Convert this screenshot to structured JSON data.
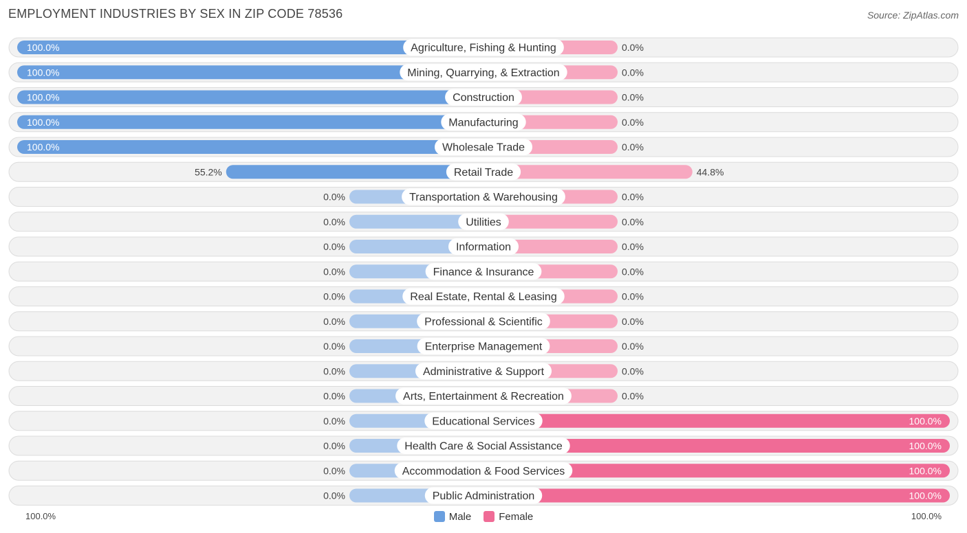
{
  "title": "EMPLOYMENT INDUSTRIES BY SEX IN ZIP CODE 78536",
  "source": "Source: ZipAtlas.com",
  "axis": {
    "left_label": "100.0%",
    "right_label": "100.0%"
  },
  "legend": {
    "male": "Male",
    "female": "Female"
  },
  "colors": {
    "male_strong": "#6a9fdf",
    "male_light": "#adc9ec",
    "female_strong": "#f06b96",
    "female_light": "#f7a8c0",
    "row_bg": "#f2f2f2",
    "row_border": "#dcdcdc"
  },
  "chart_data": {
    "type": "bar",
    "orientation": "horizontal-diverging",
    "xlim": [
      -100,
      100
    ],
    "categories": [
      "Agriculture, Fishing & Hunting",
      "Mining, Quarrying, & Extraction",
      "Construction",
      "Manufacturing",
      "Wholesale Trade",
      "Retail Trade",
      "Transportation & Warehousing",
      "Utilities",
      "Information",
      "Finance & Insurance",
      "Real Estate, Rental & Leasing",
      "Professional & Scientific",
      "Enterprise Management",
      "Administrative & Support",
      "Arts, Entertainment & Recreation",
      "Educational Services",
      "Health Care & Social Assistance",
      "Accommodation & Food Services",
      "Public Administration"
    ],
    "series": [
      {
        "name": "Male",
        "values": [
          100,
          100,
          100,
          100,
          100,
          55.2,
          0,
          0,
          0,
          0,
          0,
          0,
          0,
          0,
          0,
          0,
          0,
          0,
          0
        ],
        "labels": [
          "100.0%",
          "100.0%",
          "100.0%",
          "100.0%",
          "100.0%",
          "55.2%",
          "0.0%",
          "0.0%",
          "0.0%",
          "0.0%",
          "0.0%",
          "0.0%",
          "0.0%",
          "0.0%",
          "0.0%",
          "0.0%",
          "0.0%",
          "0.0%",
          "0.0%"
        ]
      },
      {
        "name": "Female",
        "values": [
          0,
          0,
          0,
          0,
          0,
          44.8,
          0,
          0,
          0,
          0,
          0,
          0,
          0,
          0,
          0,
          100,
          100,
          100,
          100
        ],
        "labels": [
          "0.0%",
          "0.0%",
          "0.0%",
          "0.0%",
          "0.0%",
          "44.8%",
          "0.0%",
          "0.0%",
          "0.0%",
          "0.0%",
          "0.0%",
          "0.0%",
          "0.0%",
          "0.0%",
          "0.0%",
          "100.0%",
          "100.0%",
          "100.0%",
          "100.0%"
        ]
      }
    ]
  }
}
